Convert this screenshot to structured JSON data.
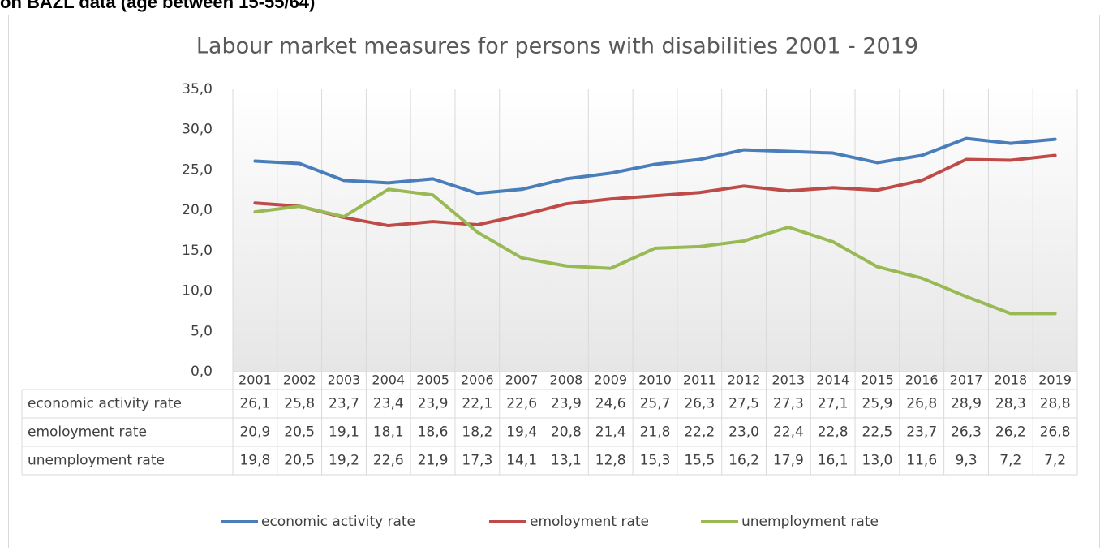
{
  "page_heading": "on BAZL data (age between 15-55/64)",
  "chart_data": {
    "type": "line",
    "title": "Labour market measures for persons with disabilities 2001 - 2019",
    "categories": [
      "2001",
      "2002",
      "2003",
      "2004",
      "2005",
      "2006",
      "2007",
      "2008",
      "2009",
      "2010",
      "2011",
      "2012",
      "2013",
      "2014",
      "2015",
      "2016",
      "2017",
      "2018",
      "2019"
    ],
    "series": [
      {
        "name": "economic activity rate",
        "color": "#4a7ebb",
        "values": [
          26.1,
          25.8,
          23.7,
          23.4,
          23.9,
          22.1,
          22.6,
          23.9,
          24.6,
          25.7,
          26.3,
          27.5,
          27.3,
          27.1,
          25.9,
          26.8,
          28.9,
          28.3,
          28.8
        ],
        "value_labels": [
          "26,1",
          "25,8",
          "23,7",
          "23,4",
          "23,9",
          "22,1",
          "22,6",
          "23,9",
          "24,6",
          "25,7",
          "26,3",
          "27,5",
          "27,3",
          "27,1",
          "25,9",
          "26,8",
          "28,9",
          "28,3",
          "28,8"
        ]
      },
      {
        "name": "emoloyment rate",
        "color": "#be4b48",
        "values": [
          20.9,
          20.5,
          19.1,
          18.1,
          18.6,
          18.2,
          19.4,
          20.8,
          21.4,
          21.8,
          22.2,
          23.0,
          22.4,
          22.8,
          22.5,
          23.7,
          26.3,
          26.2,
          26.8
        ],
        "value_labels": [
          "20,9",
          "20,5",
          "19,1",
          "18,1",
          "18,6",
          "18,2",
          "19,4",
          "20,8",
          "21,4",
          "21,8",
          "22,2",
          "23,0",
          "22,4",
          "22,8",
          "22,5",
          "23,7",
          "26,3",
          "26,2",
          "26,8"
        ]
      },
      {
        "name": "unemployment rate",
        "color": "#98b954",
        "values": [
          19.8,
          20.5,
          19.2,
          22.6,
          21.9,
          17.3,
          14.1,
          13.1,
          12.8,
          15.3,
          15.5,
          16.2,
          17.9,
          16.1,
          13.0,
          11.6,
          9.3,
          7.2,
          7.2
        ],
        "value_labels": [
          "19,8",
          "20,5",
          "19,2",
          "22,6",
          "21,9",
          "17,3",
          "14,1",
          "13,1",
          "12,8",
          "15,3",
          "15,5",
          "16,2",
          "17,9",
          "16,1",
          "13,0",
          "11,6",
          "9,3",
          "7,2",
          "7,2"
        ]
      }
    ],
    "ylim": [
      0,
      35
    ],
    "yticks": [
      {
        "value": 0,
        "label": "0,0"
      },
      {
        "value": 5,
        "label": "5,0"
      },
      {
        "value": 10,
        "label": "10,0"
      },
      {
        "value": 15,
        "label": "15,0"
      },
      {
        "value": 20,
        "label": "20,0"
      },
      {
        "value": 25,
        "label": "25,0"
      },
      {
        "value": 30,
        "label": "30,0"
      },
      {
        "value": 35,
        "label": "35,0"
      }
    ],
    "legend": "bottom"
  }
}
